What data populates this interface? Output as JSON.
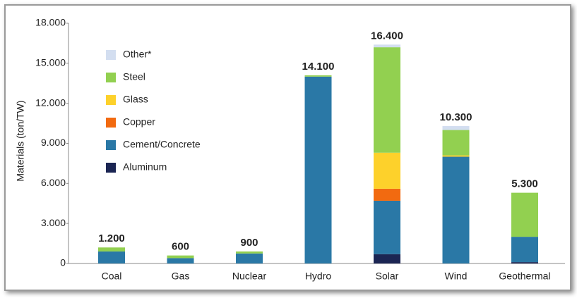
{
  "chart_data": {
    "type": "stacked_bar",
    "y_label": "Materials (ton/TW)",
    "categories": [
      "Coal",
      "Gas",
      "Nuclear",
      "Hydro",
      "Solar",
      "Wind",
      "Geothermal"
    ],
    "series": [
      {
        "name": "Aluminum",
        "color": "#1b2553",
        "values": [
          0,
          0,
          0,
          0,
          700,
          0,
          100
        ]
      },
      {
        "name": "Cement/Concrete",
        "color": "#2a78a6",
        "values": [
          900,
          400,
          750,
          14000,
          4000,
          8000,
          1900
        ]
      },
      {
        "name": "Copper",
        "color": "#f26a10",
        "values": [
          0,
          0,
          0,
          0,
          900,
          0,
          0
        ]
      },
      {
        "name": "Glass",
        "color": "#fdd12b",
        "values": [
          0,
          0,
          0,
          0,
          2700,
          100,
          0
        ]
      },
      {
        "name": "Steel",
        "color": "#92d050",
        "values": [
          300,
          200,
          150,
          100,
          7900,
          1900,
          3300
        ]
      },
      {
        "name": "Other*",
        "color": "#d3def0",
        "values": [
          0,
          0,
          0,
          0,
          200,
          300,
          0
        ]
      }
    ],
    "totals": {
      "values": [
        1200,
        600,
        900,
        14100,
        16400,
        10300,
        5300
      ],
      "value_labels": [
        "1.200",
        "600",
        "900",
        "14.100",
        "16.400",
        "10.300",
        "5.300"
      ]
    },
    "ylim": [
      0,
      18000
    ],
    "yticks": [
      0,
      {
        "value": 3000,
        "label": "3.000"
      },
      {
        "value": 6000,
        "label": "6.000"
      },
      {
        "value": 9000,
        "label": "9.000"
      },
      {
        "value": 12000,
        "label": "12.000"
      },
      {
        "value": 15000,
        "label": "15.000"
      },
      {
        "value": 18000,
        "label": "18.000"
      }
    ],
    "grid": false,
    "legend": "upper-left"
  }
}
